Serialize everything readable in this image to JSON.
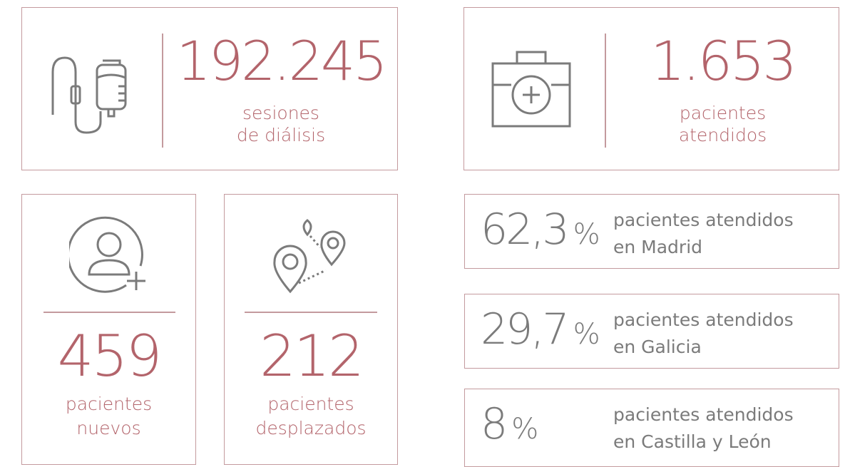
{
  "dialysis": {
    "value": "192.245",
    "label_lines": [
      "sesiones",
      "de diálisis"
    ]
  },
  "patients": {
    "value": "1.653",
    "label_lines": [
      "pacientes",
      "atendidos"
    ]
  },
  "new_patients": {
    "value": "459",
    "label_lines": [
      "pacientes",
      "nuevos"
    ]
  },
  "displaced_patients": {
    "value": "212",
    "label_lines": [
      "pacientes",
      "desplazados"
    ]
  },
  "regions": [
    {
      "percent": "62,3",
      "unit": "%",
      "label_lines": [
        "pacientes atendidos",
        "en Madrid"
      ]
    },
    {
      "percent": "29,7",
      "unit": "%",
      "label_lines": [
        "pacientes atendidos",
        "en Galicia"
      ]
    },
    {
      "percent": "8",
      "unit": "%",
      "label_lines": [
        "pacientes atendidos",
        "en Castilla y León"
      ]
    }
  ]
}
